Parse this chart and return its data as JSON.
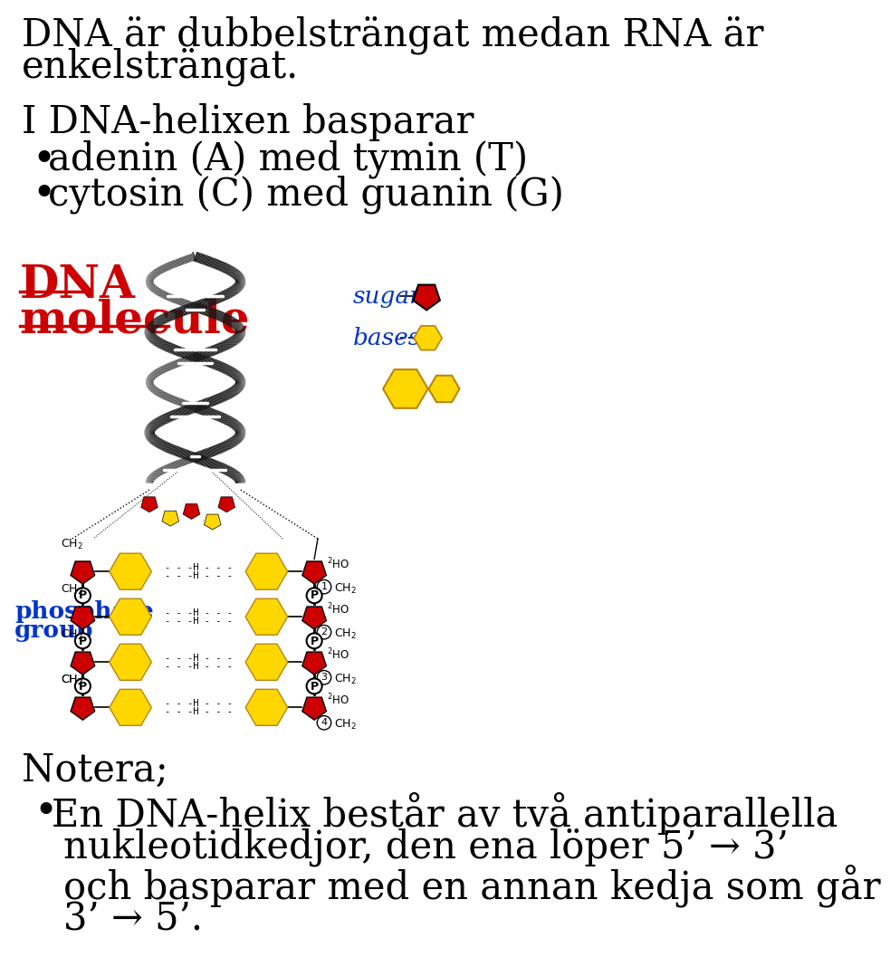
{
  "line1": "DNA är dubbelsträngat medan RNA är",
  "line2": "enkelsträngat.",
  "line3": "I DNA-helixen basparar",
  "bullet1": "adenin (A) med tymin (T)",
  "bullet2": "cytosin (C) med guanin (G)",
  "dna_label1": "DNA",
  "dna_label2": "molecule",
  "sugar_label": "sugar",
  "bases_label": "bases",
  "phosphate_label1": "phosphate",
  "phosphate_label2": "group",
  "notera": "Notera;",
  "note_line1": "En DNA-helix består av två antiparallella",
  "note_line2": "nukleotidkedjor, den ena löper 5’ → 3’",
  "note_line3": "och basparar med en annan kedja som går",
  "note_line4": "3’ → 5’.",
  "text_color": "#000000",
  "red_color": "#CC0000",
  "blue_color": "#0033CC",
  "yellow_color": "#FFD700",
  "yellow_edge": "#B8860B",
  "bg_color": "#FFFFFF",
  "fs_main": 30,
  "fs_label": 18,
  "fs_small": 10
}
